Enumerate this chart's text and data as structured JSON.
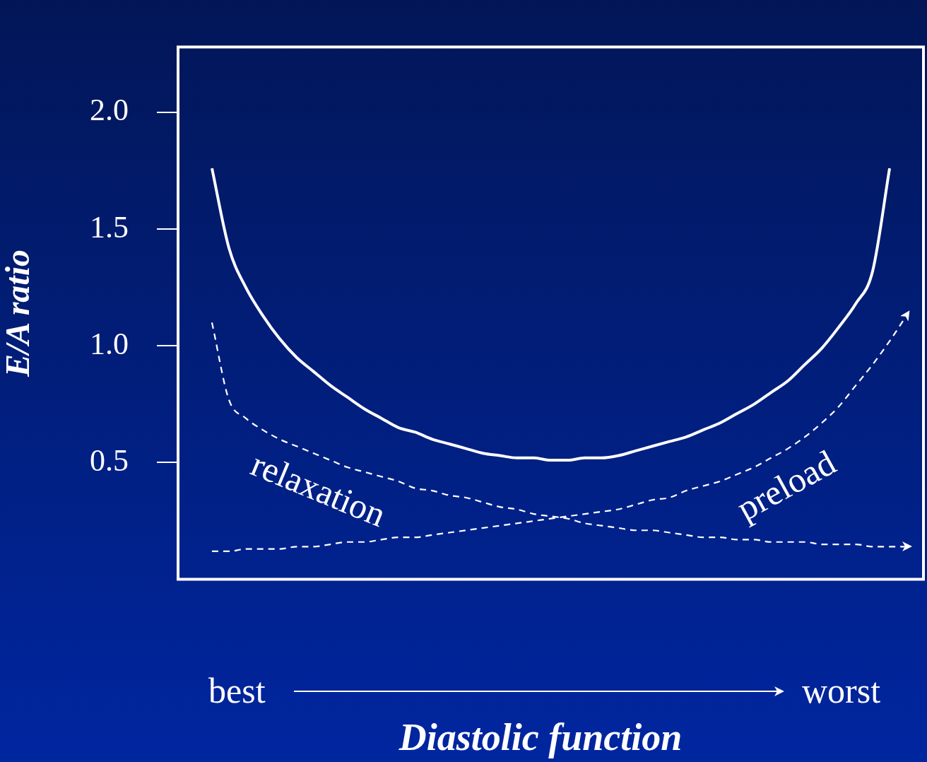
{
  "chart_data": {
    "type": "line",
    "ylabel": "E/A ratio",
    "xlabel": "Diastolic function",
    "annotations": [
      "best",
      "worst"
    ],
    "categories": [
      null,
      null,
      null,
      null,
      null,
      null,
      null,
      null,
      null,
      null,
      null,
      null,
      null,
      null,
      null,
      null,
      null,
      null,
      null,
      null,
      null,
      null,
      null,
      null,
      null,
      null,
      null,
      null,
      null,
      null,
      null,
      null,
      null,
      null,
      null,
      null,
      null,
      null,
      null,
      null,
      null,
      null,
      null,
      null,
      null
    ],
    "series": [
      {
        "color": "#ffffff",
        "line_style": "solid",
        "values": [
          null,
          null,
          1.76,
          1.42,
          1.25,
          1.13,
          1.03,
          0.95,
          0.89,
          0.83,
          0.78,
          0.73,
          0.69,
          0.65,
          0.63,
          0.6,
          0.58,
          0.56,
          0.54,
          0.53,
          0.52,
          0.52,
          0.51,
          0.51,
          0.52,
          0.52,
          0.53,
          0.55,
          0.57,
          0.59,
          0.61,
          0.64,
          0.67,
          0.71,
          0.75,
          0.8,
          0.85,
          0.92,
          0.99,
          1.08,
          1.18,
          1.32,
          1.76,
          null,
          null
        ]
      },
      {
        "name": "relaxation",
        "color": "#ffffff",
        "line_style": "dashed",
        "values": [
          null,
          null,
          1.1,
          0.77,
          0.69,
          0.64,
          0.6,
          0.57,
          0.54,
          0.51,
          0.48,
          0.46,
          0.44,
          0.42,
          0.39,
          0.38,
          0.36,
          0.35,
          0.33,
          0.31,
          0.3,
          0.28,
          0.27,
          0.26,
          0.24,
          0.23,
          0.22,
          0.21,
          0.21,
          0.2,
          0.19,
          0.18,
          0.18,
          0.17,
          0.17,
          0.16,
          0.16,
          0.16,
          0.15,
          0.15,
          0.15,
          0.14,
          0.14,
          0.14,
          null
        ]
      },
      {
        "name": "preload",
        "color": "#ffffff",
        "line_style": "dashed",
        "values": [
          null,
          null,
          0.12,
          0.12,
          0.13,
          0.13,
          0.13,
          0.14,
          0.14,
          0.15,
          0.16,
          0.16,
          0.17,
          0.18,
          0.18,
          0.19,
          0.2,
          0.21,
          0.22,
          0.23,
          0.24,
          0.25,
          0.26,
          0.27,
          0.28,
          0.29,
          0.3,
          0.32,
          0.34,
          0.35,
          0.38,
          0.4,
          0.42,
          0.45,
          0.48,
          0.52,
          0.56,
          0.61,
          0.67,
          0.74,
          0.83,
          0.92,
          1.02,
          1.13,
          null
        ]
      }
    ],
    "ylim": [
      0,
      2.28
    ],
    "yticks": [
      0.5,
      {
        "value": 1,
        "label": "1.0"
      },
      1.5,
      {
        "value": 2,
        "label": "2.0"
      }
    ],
    "tick_labels": "y",
    "grid": false,
    "legend": false,
    "marker": "none"
  }
}
